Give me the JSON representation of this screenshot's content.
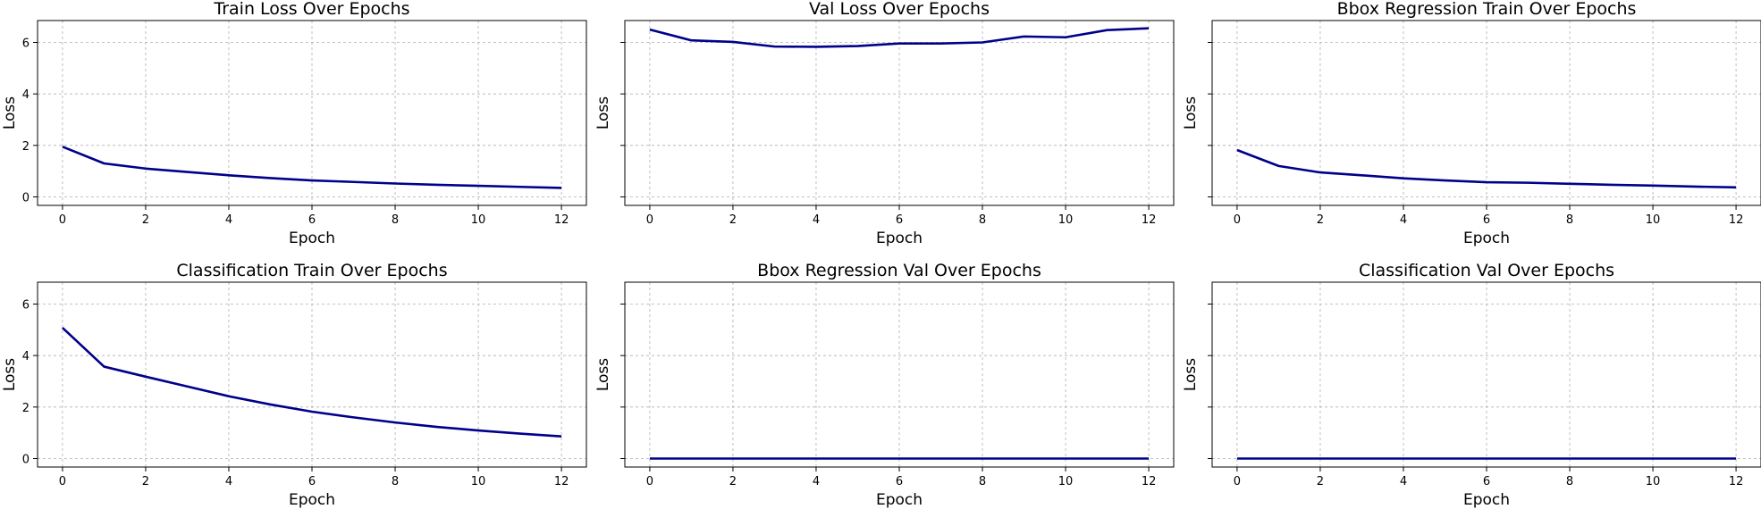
{
  "colors": {
    "line": "#00008B",
    "grid": "#b0b0b0"
  },
  "chart_data": [
    {
      "type": "line",
      "title": "Train Loss Over Epochs",
      "xlabel": "Epoch",
      "ylabel": "Loss",
      "x": [
        0,
        1,
        2,
        3,
        4,
        5,
        6,
        7,
        8,
        9,
        10,
        11,
        12
      ],
      "values": [
        1.95,
        1.3,
        1.1,
        0.97,
        0.84,
        0.73,
        0.64,
        0.58,
        0.52,
        0.47,
        0.43,
        0.39,
        0.35
      ],
      "xlim": [
        -0.6,
        12.6
      ],
      "ylim": [
        -0.33,
        6.85
      ],
      "xticks": [
        0,
        2,
        4,
        6,
        8,
        10,
        12
      ],
      "yticks": [
        0,
        2,
        4,
        6
      ],
      "show_ytick_labels": true,
      "grid": true
    },
    {
      "type": "line",
      "title": "Val Loss Over Epochs",
      "xlabel": "Epoch",
      "ylabel": "Loss",
      "x": [
        0,
        1,
        2,
        3,
        4,
        5,
        6,
        7,
        8,
        9,
        10,
        11,
        12
      ],
      "values": [
        6.5,
        6.08,
        6.02,
        5.84,
        5.83,
        5.86,
        5.96,
        5.96,
        6.0,
        6.23,
        6.2,
        6.48,
        6.55
      ],
      "xlim": [
        -0.6,
        12.6
      ],
      "ylim": [
        -0.33,
        6.85
      ],
      "xticks": [
        0,
        2,
        4,
        6,
        8,
        10,
        12
      ],
      "yticks": [
        0,
        2,
        4,
        6
      ],
      "show_ytick_labels": false,
      "grid": true
    },
    {
      "type": "line",
      "title": "Bbox Regression Train Over Epochs",
      "xlabel": "Epoch",
      "ylabel": "Loss",
      "x": [
        0,
        1,
        2,
        3,
        4,
        5,
        6,
        7,
        8,
        9,
        10,
        11,
        12
      ],
      "values": [
        1.82,
        1.2,
        0.95,
        0.84,
        0.72,
        0.64,
        0.57,
        0.55,
        0.51,
        0.47,
        0.44,
        0.4,
        0.37
      ],
      "xlim": [
        -0.6,
        12.6
      ],
      "ylim": [
        -0.33,
        6.85
      ],
      "xticks": [
        0,
        2,
        4,
        6,
        8,
        10,
        12
      ],
      "yticks": [
        0,
        2,
        4,
        6
      ],
      "show_ytick_labels": false,
      "grid": true
    },
    {
      "type": "line",
      "title": "Classification Train Over Epochs",
      "xlabel": "Epoch",
      "ylabel": "Loss",
      "x": [
        0,
        1,
        2,
        3,
        4,
        5,
        6,
        7,
        8,
        9,
        10,
        11,
        12
      ],
      "values": [
        5.08,
        3.57,
        3.18,
        2.8,
        2.42,
        2.1,
        1.82,
        1.6,
        1.4,
        1.23,
        1.09,
        0.97,
        0.86
      ],
      "xlim": [
        -0.6,
        12.6
      ],
      "ylim": [
        -0.33,
        6.85
      ],
      "xticks": [
        0,
        2,
        4,
        6,
        8,
        10,
        12
      ],
      "yticks": [
        0,
        2,
        4,
        6
      ],
      "show_ytick_labels": true,
      "grid": true
    },
    {
      "type": "line",
      "title": "Bbox Regression Val Over Epochs",
      "xlabel": "Epoch",
      "ylabel": "Loss",
      "x": [
        0,
        1,
        2,
        3,
        4,
        5,
        6,
        7,
        8,
        9,
        10,
        11,
        12
      ],
      "values": [
        0,
        0,
        0,
        0,
        0,
        0,
        0,
        0,
        0,
        0,
        0,
        0,
        0
      ],
      "xlim": [
        -0.6,
        12.6
      ],
      "ylim": [
        -0.33,
        6.85
      ],
      "xticks": [
        0,
        2,
        4,
        6,
        8,
        10,
        12
      ],
      "yticks": [
        0,
        2,
        4,
        6
      ],
      "show_ytick_labels": false,
      "grid": true
    },
    {
      "type": "line",
      "title": "Classification Val Over Epochs",
      "xlabel": "Epoch",
      "ylabel": "Loss",
      "x": [
        0,
        1,
        2,
        3,
        4,
        5,
        6,
        7,
        8,
        9,
        10,
        11,
        12
      ],
      "values": [
        0,
        0,
        0,
        0,
        0,
        0,
        0,
        0,
        0,
        0,
        0,
        0,
        0
      ],
      "xlim": [
        -0.6,
        12.6
      ],
      "ylim": [
        -0.33,
        6.85
      ],
      "xticks": [
        0,
        2,
        4,
        6,
        8,
        10,
        12
      ],
      "yticks": [
        0,
        2,
        4,
        6
      ],
      "show_ytick_labels": false,
      "grid": true
    }
  ]
}
